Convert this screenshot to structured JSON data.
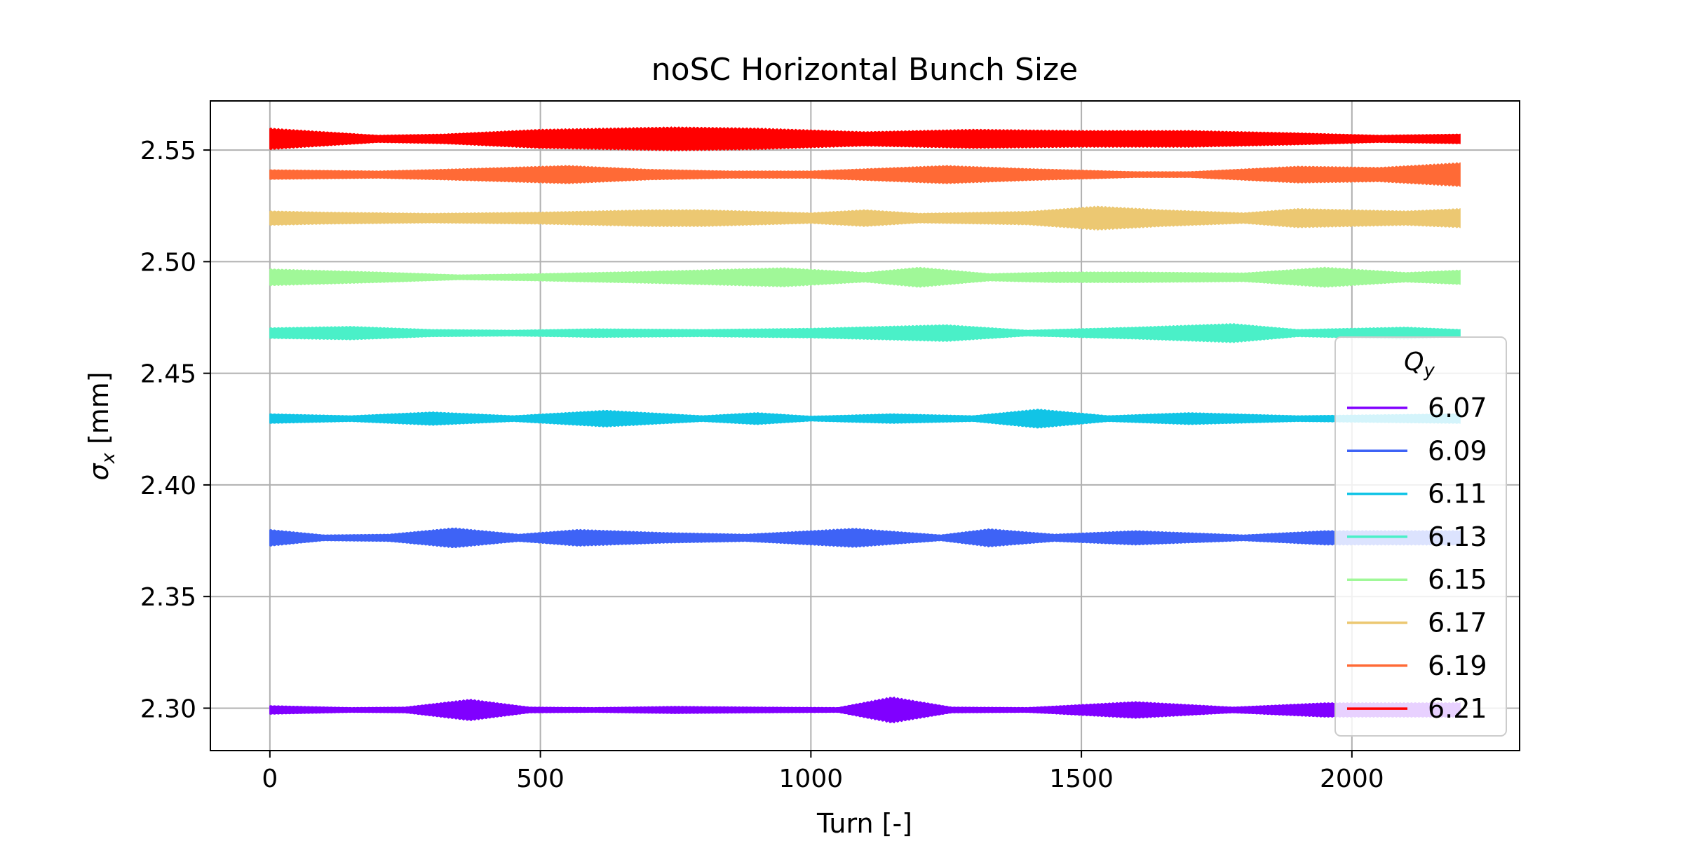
{
  "chart_data": {
    "type": "line",
    "title": "noSC Horizontal Bunch Size",
    "xlabel": "Turn [-]",
    "ylabel": "σx [mm]",
    "xlim": [
      -110,
      2310
    ],
    "ylim": [
      2.281,
      2.572
    ],
    "xticks": [
      0,
      500,
      1000,
      1500,
      2000
    ],
    "xtick_labels": [
      "0",
      "500",
      "1000",
      "1500",
      "2000"
    ],
    "yticks": [
      2.3,
      2.35,
      2.4,
      2.45,
      2.5,
      2.55
    ],
    "ytick_labels": [
      "2.30",
      "2.35",
      "2.40",
      "2.45",
      "2.50",
      "2.55"
    ],
    "grid": true,
    "legend": {
      "title": "Qy",
      "placement": "right"
    },
    "x_range": [
      0,
      2200
    ],
    "series": [
      {
        "name": "6.07",
        "color": "#8000ff",
        "mean": 2.2992,
        "envelope": [
          [
            0,
            0.0018
          ],
          [
            150,
            0.001
          ],
          [
            250,
            0.0012
          ],
          [
            370,
            0.0045
          ],
          [
            480,
            0.0012
          ],
          [
            600,
            0.001
          ],
          [
            750,
            0.0015
          ],
          [
            900,
            0.0012
          ],
          [
            1050,
            0.001
          ],
          [
            1150,
            0.0055
          ],
          [
            1260,
            0.0012
          ],
          [
            1400,
            0.001
          ],
          [
            1600,
            0.0035
          ],
          [
            1780,
            0.0012
          ],
          [
            1950,
            0.003
          ],
          [
            2200,
            0.003
          ]
        ]
      },
      {
        "name": "6.09",
        "color": "#3e63f6",
        "mean": 2.3763,
        "envelope": [
          [
            0,
            0.0035
          ],
          [
            100,
            0.0012
          ],
          [
            220,
            0.0015
          ],
          [
            340,
            0.0042
          ],
          [
            460,
            0.0015
          ],
          [
            570,
            0.0035
          ],
          [
            730,
            0.0022
          ],
          [
            880,
            0.0015
          ],
          [
            1080,
            0.004
          ],
          [
            1240,
            0.0012
          ],
          [
            1330,
            0.0038
          ],
          [
            1450,
            0.0015
          ],
          [
            1600,
            0.003
          ],
          [
            1800,
            0.0012
          ],
          [
            1950,
            0.003
          ],
          [
            2200,
            0.003
          ]
        ]
      },
      {
        "name": "6.11",
        "color": "#11c4e6",
        "mean": 2.4297,
        "envelope": [
          [
            0,
            0.002
          ],
          [
            150,
            0.0012
          ],
          [
            300,
            0.0028
          ],
          [
            450,
            0.0012
          ],
          [
            620,
            0.0035
          ],
          [
            800,
            0.0012
          ],
          [
            900,
            0.0025
          ],
          [
            1000,
            0.001
          ],
          [
            1150,
            0.002
          ],
          [
            1300,
            0.0012
          ],
          [
            1420,
            0.004
          ],
          [
            1550,
            0.0012
          ],
          [
            1700,
            0.0025
          ],
          [
            1900,
            0.0012
          ],
          [
            2200,
            0.002
          ]
        ]
      },
      {
        "name": "6.13",
        "color": "#4af0c8",
        "mean": 2.468,
        "envelope": [
          [
            0,
            0.0022
          ],
          [
            150,
            0.0028
          ],
          [
            300,
            0.0015
          ],
          [
            450,
            0.0012
          ],
          [
            600,
            0.0018
          ],
          [
            800,
            0.0015
          ],
          [
            1000,
            0.002
          ],
          [
            1250,
            0.0035
          ],
          [
            1400,
            0.0012
          ],
          [
            1600,
            0.0025
          ],
          [
            1780,
            0.004
          ],
          [
            1900,
            0.0015
          ],
          [
            2100,
            0.0025
          ],
          [
            2200,
            0.0015
          ]
        ]
      },
      {
        "name": "6.15",
        "color": "#a0f898",
        "mean": 2.493,
        "envelope": [
          [
            0,
            0.0035
          ],
          [
            200,
            0.0022
          ],
          [
            350,
            0.001
          ],
          [
            500,
            0.0015
          ],
          [
            700,
            0.0025
          ],
          [
            950,
            0.004
          ],
          [
            1100,
            0.002
          ],
          [
            1200,
            0.0042
          ],
          [
            1330,
            0.0015
          ],
          [
            1450,
            0.0022
          ],
          [
            1600,
            0.0022
          ],
          [
            1800,
            0.0018
          ],
          [
            1950,
            0.0042
          ],
          [
            2100,
            0.002
          ],
          [
            2200,
            0.003
          ]
        ]
      },
      {
        "name": "6.17",
        "color": "#ecc872",
        "mean": 2.5195,
        "envelope": [
          [
            0,
            0.003
          ],
          [
            100,
            0.0025
          ],
          [
            300,
            0.002
          ],
          [
            500,
            0.0025
          ],
          [
            700,
            0.0035
          ],
          [
            800,
            0.0035
          ],
          [
            1000,
            0.0022
          ],
          [
            1100,
            0.0035
          ],
          [
            1200,
            0.002
          ],
          [
            1400,
            0.0028
          ],
          [
            1530,
            0.005
          ],
          [
            1650,
            0.0035
          ],
          [
            1800,
            0.0022
          ],
          [
            1900,
            0.004
          ],
          [
            2100,
            0.003
          ],
          [
            2200,
            0.004
          ]
        ]
      },
      {
        "name": "6.19",
        "color": "#ff6a36",
        "mean": 2.539,
        "envelope": [
          [
            0,
            0.002
          ],
          [
            200,
            0.0015
          ],
          [
            320,
            0.0022
          ],
          [
            550,
            0.0038
          ],
          [
            700,
            0.0022
          ],
          [
            850,
            0.0015
          ],
          [
            1000,
            0.0015
          ],
          [
            1250,
            0.0038
          ],
          [
            1400,
            0.0025
          ],
          [
            1600,
            0.0012
          ],
          [
            1700,
            0.0012
          ],
          [
            1900,
            0.0035
          ],
          [
            2050,
            0.003
          ],
          [
            2200,
            0.005
          ]
        ]
      },
      {
        "name": "6.21",
        "color": "#ff0000",
        "mean": 2.555,
        "envelope": [
          [
            0,
            0.0045
          ],
          [
            100,
            0.003
          ],
          [
            200,
            0.0015
          ],
          [
            320,
            0.002
          ],
          [
            500,
            0.004
          ],
          [
            750,
            0.005
          ],
          [
            900,
            0.0045
          ],
          [
            1100,
            0.003
          ],
          [
            1300,
            0.004
          ],
          [
            1500,
            0.0035
          ],
          [
            1700,
            0.0035
          ],
          [
            1900,
            0.0025
          ],
          [
            2050,
            0.0015
          ],
          [
            2200,
            0.002
          ]
        ]
      }
    ]
  }
}
